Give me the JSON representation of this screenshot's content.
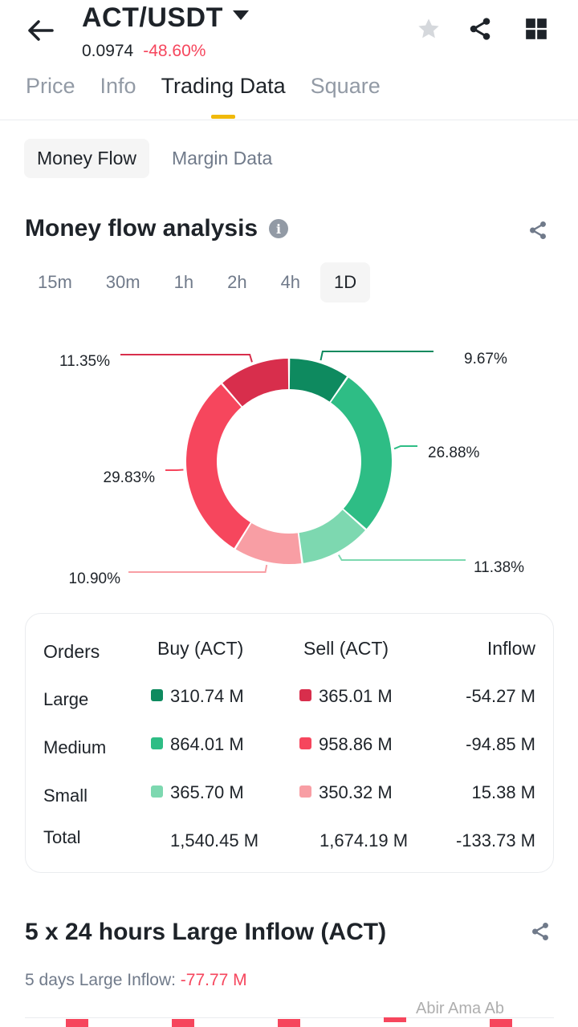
{
  "header": {
    "pair": "ACT/USDT",
    "price": "0.0974",
    "change": "-48.60%",
    "tabs": [
      "Price",
      "Info",
      "Trading Data",
      "Square"
    ]
  },
  "subtabs": [
    "Money Flow",
    "Margin Data"
  ],
  "analysis": {
    "title": "Money flow analysis",
    "intervals": [
      "15m",
      "30m",
      "1h",
      "2h",
      "4h",
      "1D"
    ]
  },
  "chart_data": {
    "type": "pie",
    "title": "Money flow analysis",
    "slices": [
      {
        "name": "Large Buy",
        "value": 9.67,
        "label": "9.67%",
        "color": "#0e8a5f"
      },
      {
        "name": "Medium Buy",
        "value": 26.88,
        "label": "26.88%",
        "color": "#2ebd85"
      },
      {
        "name": "Small Buy",
        "value": 11.38,
        "label": "11.38%",
        "color": "#7dd8b0"
      },
      {
        "name": "Small Sell",
        "value": 10.9,
        "label": "10.90%",
        "color": "#f89ea4"
      },
      {
        "name": "Medium Sell",
        "value": 29.83,
        "label": "29.83%",
        "color": "#f6465d"
      },
      {
        "name": "Large Sell",
        "value": 11.35,
        "label": "11.35%",
        "color": "#d82e4c"
      }
    ]
  },
  "table": {
    "headers": {
      "orders": "Orders",
      "buy": "Buy (ACT)",
      "sell": "Sell (ACT)",
      "inflow": "Inflow"
    },
    "rows": [
      {
        "label": "Large",
        "buy": "310.74 M",
        "sell": "365.01 M",
        "inflow": "-54.27 M"
      },
      {
        "label": "Medium",
        "buy": "864.01 M",
        "sell": "958.86 M",
        "inflow": "-94.85 M"
      },
      {
        "label": "Small",
        "buy": "365.70 M",
        "sell": "350.32 M",
        "inflow": "15.38 M"
      }
    ],
    "total": {
      "label": "Total",
      "buy": "1,540.45 M",
      "sell": "1,674.19 M",
      "inflow": "-133.73 M"
    }
  },
  "large_inflow": {
    "title": "5 x 24 hours Large Inflow (ACT)",
    "days_label": "5 days Large Inflow: ",
    "days_value": "-77.77 M"
  },
  "watermark": "Abir Ama Ab"
}
